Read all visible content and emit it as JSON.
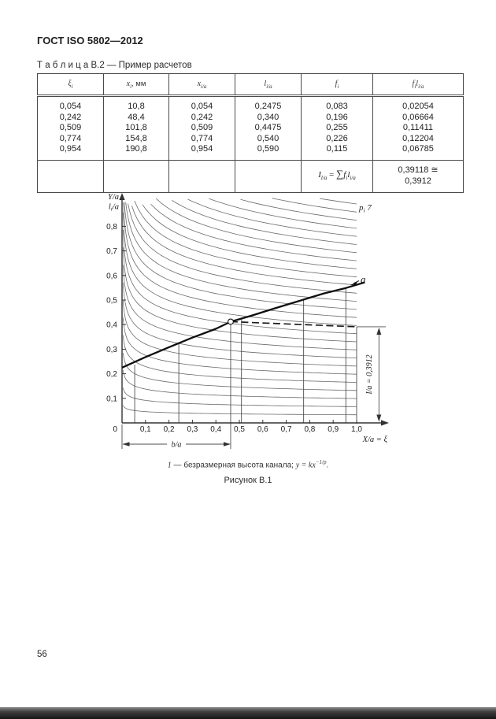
{
  "document": {
    "header_title": "ГОСТ ISO 5802—2012",
    "page_number": "56"
  },
  "table": {
    "caption": "Т а б л и ц а  В.2 — Пример расчетов",
    "columns": [
      {
        "var": "ξ",
        "sub": "i",
        "suffix": ""
      },
      {
        "var": "x",
        "sub": "i",
        "suffix": ", мм"
      },
      {
        "var": "x",
        "sub": "i/a",
        "suffix": ""
      },
      {
        "var": "l",
        "sub": "i/a",
        "suffix": ""
      },
      {
        "var": "f",
        "sub": "i",
        "suffix": ""
      },
      {
        "var": "f",
        "sub": "i",
        "var2": "l",
        "sub2": "i/a",
        "suffix": ""
      }
    ],
    "rows": [
      [
        "0,054",
        "10,8",
        "0,054",
        "0,2475",
        "0,083",
        "0,02054"
      ],
      [
        "0,242",
        "48,4",
        "0,242",
        "0,340",
        "0,196",
        "0,06664"
      ],
      [
        "0,509",
        "101,8",
        "0,509",
        "0,4475",
        "0,255",
        "0,11411"
      ],
      [
        "0,774",
        "154,8",
        "0,774",
        "0,540",
        "0,226",
        "0,12204"
      ],
      [
        "0,954",
        "190,8",
        "0,954",
        "0,590",
        "0,115",
        "0,06785"
      ]
    ],
    "summary": {
      "formula": {
        "lhs": "I",
        "lhs_sub": "l/a",
        "eq": " = ",
        "sum": "∑",
        "t1": "f",
        "t1_sub": "i",
        "t2": "l",
        "t2_sub": "i/a"
      },
      "value_line1": "0,39118 ≅",
      "value_line2": "0,3912"
    }
  },
  "figure": {
    "footnote": {
      "label": "1",
      "dash": " — ",
      "text": "безразмерная высота канала; ",
      "formula_base": "y = kx",
      "formula_exp": "−1/p",
      "period": "."
    },
    "caption": "Рисунок В.1"
  },
  "chart_data": {
    "type": "line",
    "title": "Рисунок В.1",
    "xlabel": "X/a = ξ",
    "ylabel_top": "Y/a",
    "ylabel_sub": {
      "base": "l",
      "sub": "i",
      "rest": "/a"
    },
    "origin_label": "0",
    "xlim": [
      0,
      1.13
    ],
    "ylim": [
      0,
      0.95
    ],
    "grid": false,
    "x_ticks": {
      "values": [
        0.1,
        0.2,
        0.3,
        0.4,
        0.5,
        0.6,
        0.7,
        0.8,
        0.9,
        1.0
      ],
      "labels": [
        "0,1",
        "0,2",
        "0,3",
        "0,4",
        "0,5",
        "0,6",
        "0,7",
        "0,8",
        "0,9",
        "1,0"
      ]
    },
    "y_ticks": {
      "values": [
        0.1,
        0.2,
        0.3,
        0.4,
        0.5,
        0.6,
        0.7,
        0.8
      ],
      "labels": [
        "0,1",
        "0,2",
        "0,3",
        "0,4",
        "0,5",
        "0,6",
        "0,7",
        "0,8"
      ]
    },
    "curve_family": {
      "label": {
        "base": "p",
        "sub": "i",
        "rest": " 7"
      },
      "formula": "y = k·x^(−1/p)",
      "p": 7,
      "k_min": 0.033,
      "k_step": 0.033,
      "count": 27
    },
    "measured_line": {
      "label": "a",
      "points": [
        [
          0,
          0.225
        ],
        [
          0.1,
          0.268
        ],
        [
          0.2,
          0.308
        ],
        [
          0.3,
          0.347
        ],
        [
          0.4,
          0.383
        ],
        [
          0.463,
          0.412
        ],
        [
          0.55,
          0.436
        ],
        [
          0.65,
          0.466
        ],
        [
          0.774,
          0.502
        ],
        [
          0.86,
          0.527
        ],
        [
          0.954,
          0.549
        ],
        [
          1.035,
          0.572
        ]
      ]
    },
    "marker": {
      "x": 0.463,
      "y": 0.412
    },
    "dashed_level": {
      "from": [
        0.463,
        0.412
      ],
      "to": [
        1.0,
        0.3912
      ]
    },
    "guides": [
      {
        "x": 0.054,
        "top": 0.237
      },
      {
        "x": 0.242,
        "top": 0.324
      },
      {
        "x": 0.463,
        "top": 0.412
      },
      {
        "x": 0.509,
        "top": 0.421
      },
      {
        "x": 0.774,
        "top": 0.502
      },
      {
        "x": 0.954,
        "top": 0.549
      },
      {
        "x": 1.0,
        "top": 0.3912
      }
    ],
    "dim_right": {
      "label": "I/a = 0,3912",
      "x": 1.095,
      "y_top": 0.3912
    },
    "dim_bottom": {
      "label": "b/a",
      "x_end": 0.463
    }
  }
}
